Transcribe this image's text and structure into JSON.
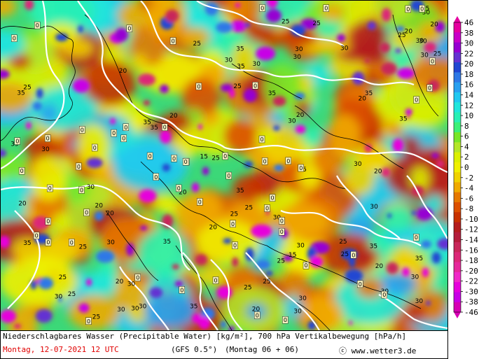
{
  "legend": {
    "ticks": [
      "46",
      "38",
      "30",
      "22",
      "20",
      "18",
      "16",
      "14",
      "12",
      "10",
      "8",
      "6",
      "4",
      "2",
      "0",
      "-2",
      "-4",
      "-6",
      "-8",
      "-10",
      "-12",
      "-14",
      "-16",
      "-18",
      "-20",
      "-22",
      "-30",
      "-38",
      "-46"
    ],
    "colors": [
      "#e600a0",
      "#c800c8",
      "#9600d2",
      "#6432d2",
      "#2046d2",
      "#2d78e6",
      "#28a0f0",
      "#20c8f0",
      "#20e6dc",
      "#28f0b4",
      "#3cf078",
      "#78e628",
      "#b4e628",
      "#dcf000",
      "#f0f000",
      "#f0d200",
      "#f0aa00",
      "#e67800",
      "#dc5000",
      "#c83200",
      "#b41e1e",
      "#b41e3c",
      "#c8285a",
      "#dc2878",
      "#e6289b",
      "#f028c8",
      "#e600dc",
      "#c800e6",
      "#d700b4"
    ]
  },
  "footer": {
    "line1": "Niederschlagbares Wasser (Precipitable Water) [kg/m²], 700 hPa Vertikalbewegung [hPa/h]",
    "date": "Montag, 12-07-2021  12 UTC",
    "model": "(GFS 0.5°)",
    "run": "(Montag 06 + 06)",
    "copyright": "ⓒ www.wetter3.de"
  },
  "contour_labels": [
    "25",
    "15",
    "20",
    "30",
    "20",
    "20",
    "25",
    "20",
    "30",
    "25",
    "30",
    "35",
    "30",
    "20",
    "20",
    "25",
    "35",
    "20",
    "25",
    "30",
    "35",
    "30",
    "35",
    "30",
    "35",
    "35",
    "35",
    "25",
    "35",
    "30",
    "30",
    "25",
    "20",
    "25",
    "20",
    "35",
    "30",
    "25",
    "35",
    "30",
    "35",
    "25",
    "30",
    "30",
    "20",
    "25",
    "35",
    "30",
    "25",
    "15",
    "30",
    "30",
    "25",
    "20",
    "30",
    "25",
    "35",
    "25",
    "30",
    "35",
    "30",
    "20",
    "30",
    "25",
    "30",
    "25",
    "20",
    "25",
    "20",
    "35",
    "30",
    "30",
    "25",
    "30",
    "25",
    "30",
    "25",
    "20",
    "30",
    "30"
  ],
  "vertical_motion_labels": [
    "0",
    "0",
    "0",
    "0",
    "0",
    "0",
    "0",
    "0",
    "0",
    "0",
    "0",
    "0",
    "0",
    "0",
    "0",
    "0",
    "0",
    "0",
    "0",
    "0",
    "0",
    "0",
    "0",
    "0",
    "0",
    "0",
    "0",
    "0",
    "0",
    "0",
    "0",
    "0",
    "0",
    "0",
    "0",
    "0",
    "0",
    "0",
    "0",
    "0",
    "0",
    "0",
    "0",
    "0",
    "0",
    "0",
    "0",
    "0",
    "0",
    "0",
    "0",
    "0",
    "0",
    "0",
    "0",
    "0",
    "0",
    "0",
    "0",
    "0"
  ]
}
